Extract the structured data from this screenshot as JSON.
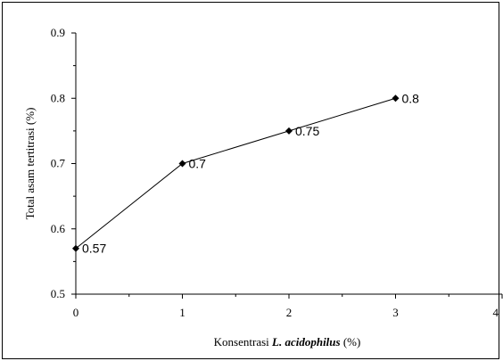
{
  "chart_data": {
    "type": "line",
    "x": [
      0,
      1,
      2,
      3
    ],
    "series": [
      {
        "values": [
          0.57,
          0.7,
          0.75,
          0.8
        ],
        "data_labels": [
          "0.57",
          "0.7",
          "0.75",
          "0.8"
        ],
        "marker": "diamond",
        "color": "#000000"
      }
    ],
    "xlim": [
      0,
      4
    ],
    "ylim": [
      0.5,
      0.9
    ],
    "x_ticks": [
      "0",
      "1",
      "2",
      "3",
      "4"
    ],
    "y_ticks": [
      "0.5",
      "0.6",
      "0.7",
      "0.8",
      "0.9"
    ],
    "xlabel_prefix": "Konsentrasi ",
    "xlabel_italic": "L. acidophilus",
    "xlabel_suffix": "  (%)",
    "ylabel": "Total asam tertitrasi (%)",
    "grid": false,
    "legend": false
  }
}
